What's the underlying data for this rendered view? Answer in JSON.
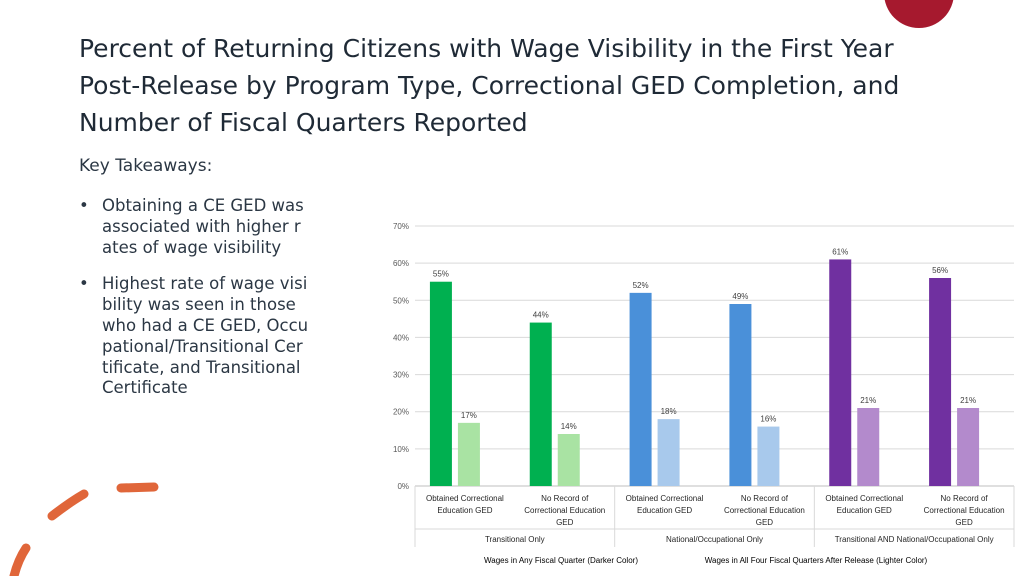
{
  "title": "Percent of Returning Citizens with Wage Visibility in the First Year Post-Release by Program Type, Correctional GED Completion, and Number of Fiscal Quarters Reported",
  "takeaways_label": "Key Takeaways:",
  "bullets": [
    "Obtaining a CE GED was associated with higher rates of wage visibility",
    "Highest rate of wage visibility was seen in those who had a CE GED, Occupational/Transitional Certificate, and Transitional Certificate"
  ],
  "colors": {
    "accent_circle": "#a6192e",
    "accent_stroke": "#e0663a"
  },
  "chart_data": {
    "type": "bar",
    "ylim": [
      0,
      70
    ],
    "yticks": [
      "0%",
      "10%",
      "20%",
      "30%",
      "40%",
      "50%",
      "60%",
      "70%"
    ],
    "grid": true,
    "legend_position": "bottom",
    "groups": [
      {
        "label": "Transitional Only",
        "categories": [
          {
            "label": [
              "Obtained Correctional",
              "Education GED"
            ],
            "values": [
              55,
              17
            ],
            "data_labels": [
              "55%",
              "17%"
            ],
            "colors": [
              "#00b050",
              "#a9e3a3"
            ]
          },
          {
            "label": [
              "No Record of",
              "Correctional Education",
              "GED"
            ],
            "values": [
              44,
              14
            ],
            "data_labels": [
              "44%",
              "14%"
            ],
            "colors": [
              "#00b050",
              "#a9e3a3"
            ]
          }
        ]
      },
      {
        "label": "National/Occupational Only",
        "categories": [
          {
            "label": [
              "Obtained Correctional",
              "Education GED"
            ],
            "values": [
              52,
              18
            ],
            "data_labels": [
              "52%",
              "18%"
            ],
            "colors": [
              "#4a90d9",
              "#a8c9ec"
            ]
          },
          {
            "label": [
              "No Record of",
              "Correctional Education",
              "GED"
            ],
            "values": [
              49,
              16
            ],
            "data_labels": [
              "49%",
              "16%"
            ],
            "colors": [
              "#4a90d9",
              "#a8c9ec"
            ]
          }
        ]
      },
      {
        "label": "Transitional AND National/Occupational Only",
        "categories": [
          {
            "label": [
              "Obtained Correctional",
              "Education GED"
            ],
            "values": [
              61,
              21
            ],
            "data_labels": [
              "61%",
              "21%"
            ],
            "colors": [
              "#7030a0",
              "#b38acc"
            ]
          },
          {
            "label": [
              "No Record of",
              "Correctional Education",
              "GED"
            ],
            "values": [
              56,
              21
            ],
            "data_labels": [
              "56%",
              "21%"
            ],
            "colors": [
              "#7030a0",
              "#b38acc"
            ]
          }
        ]
      }
    ],
    "legend": [
      {
        "label": "Wages in Any Fiscal Quarter (Darker Color)"
      },
      {
        "label": "Wages in All Four Fiscal Quarters After Release (Lighter Color)"
      }
    ]
  }
}
